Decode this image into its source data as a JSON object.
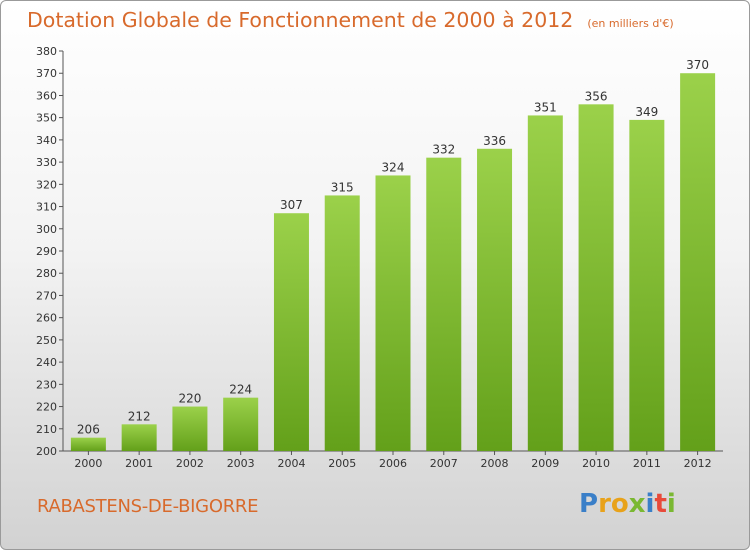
{
  "title": "Dotation Globale de Fonctionnement de 2000 à 2012",
  "unit_note": "(en milliers d'€)",
  "commune": "RABASTENS-DE-BIGORRE",
  "logo_text": "Proxiti",
  "colors": {
    "bar_top": "#9bd14a",
    "bar_bottom": "#63a01a",
    "title": "#d86a2c"
  },
  "chart_data": {
    "type": "bar",
    "categories": [
      "2000",
      "2001",
      "2002",
      "2003",
      "2004",
      "2005",
      "2006",
      "2007",
      "2008",
      "2009",
      "2010",
      "2011",
      "2012"
    ],
    "values": [
      206,
      212,
      220,
      224,
      307,
      315,
      324,
      332,
      336,
      351,
      356,
      349,
      370
    ],
    "title": "Dotation Globale de Fonctionnement de 2000 à 2012",
    "ylabel": "",
    "xlabel": "",
    "ylim": [
      200,
      380
    ],
    "ytick_step": 10,
    "grid": false,
    "data_labels": true
  }
}
